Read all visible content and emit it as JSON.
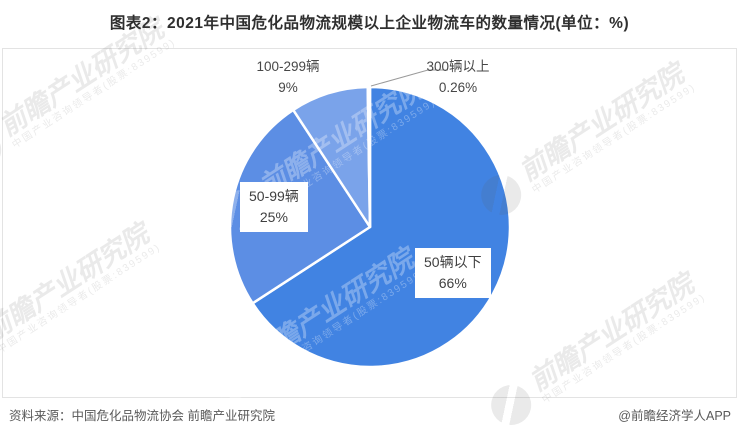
{
  "title": "图表2：2021年中国危化品物流规模以上企业物流车的数量情况(单位：%)",
  "chart_data": {
    "type": "pie",
    "title": "2021年中国危化品物流规模以上企业物流车的数量情况",
    "unit": "%",
    "direction": "clockwise",
    "start_angle_deg": 0,
    "stroke_color": "#FFFFFF",
    "legend_position": "none",
    "slices": [
      {
        "label": "50辆以下",
        "value": 66,
        "display": "66%",
        "color": "#4183E2",
        "label_placement": "boxed-on-slice-right"
      },
      {
        "label": "50-99辆",
        "value": 25,
        "display": "25%",
        "color": "#5C8EE4",
        "label_placement": "boxed-on-slice-left"
      },
      {
        "label": "100-299辆",
        "value": 9,
        "display": "9%",
        "color": "#7AA3EA",
        "label_placement": "outside-top-left"
      },
      {
        "label": "300辆以上",
        "value": 0.26,
        "display": "0.26%",
        "color": "#C7D9F5",
        "label_placement": "outside-top-right-leader-line"
      }
    ]
  },
  "source_line": "资料来源：中国危化品物流协会 前瞻产业研究院",
  "credit": "@前瞻经济学人APP",
  "watermark": {
    "logo": "qianzhan-globe-logo",
    "text": "前瞻产业研究院",
    "subtext": "中国产业咨询领导者(股票:839599)"
  }
}
